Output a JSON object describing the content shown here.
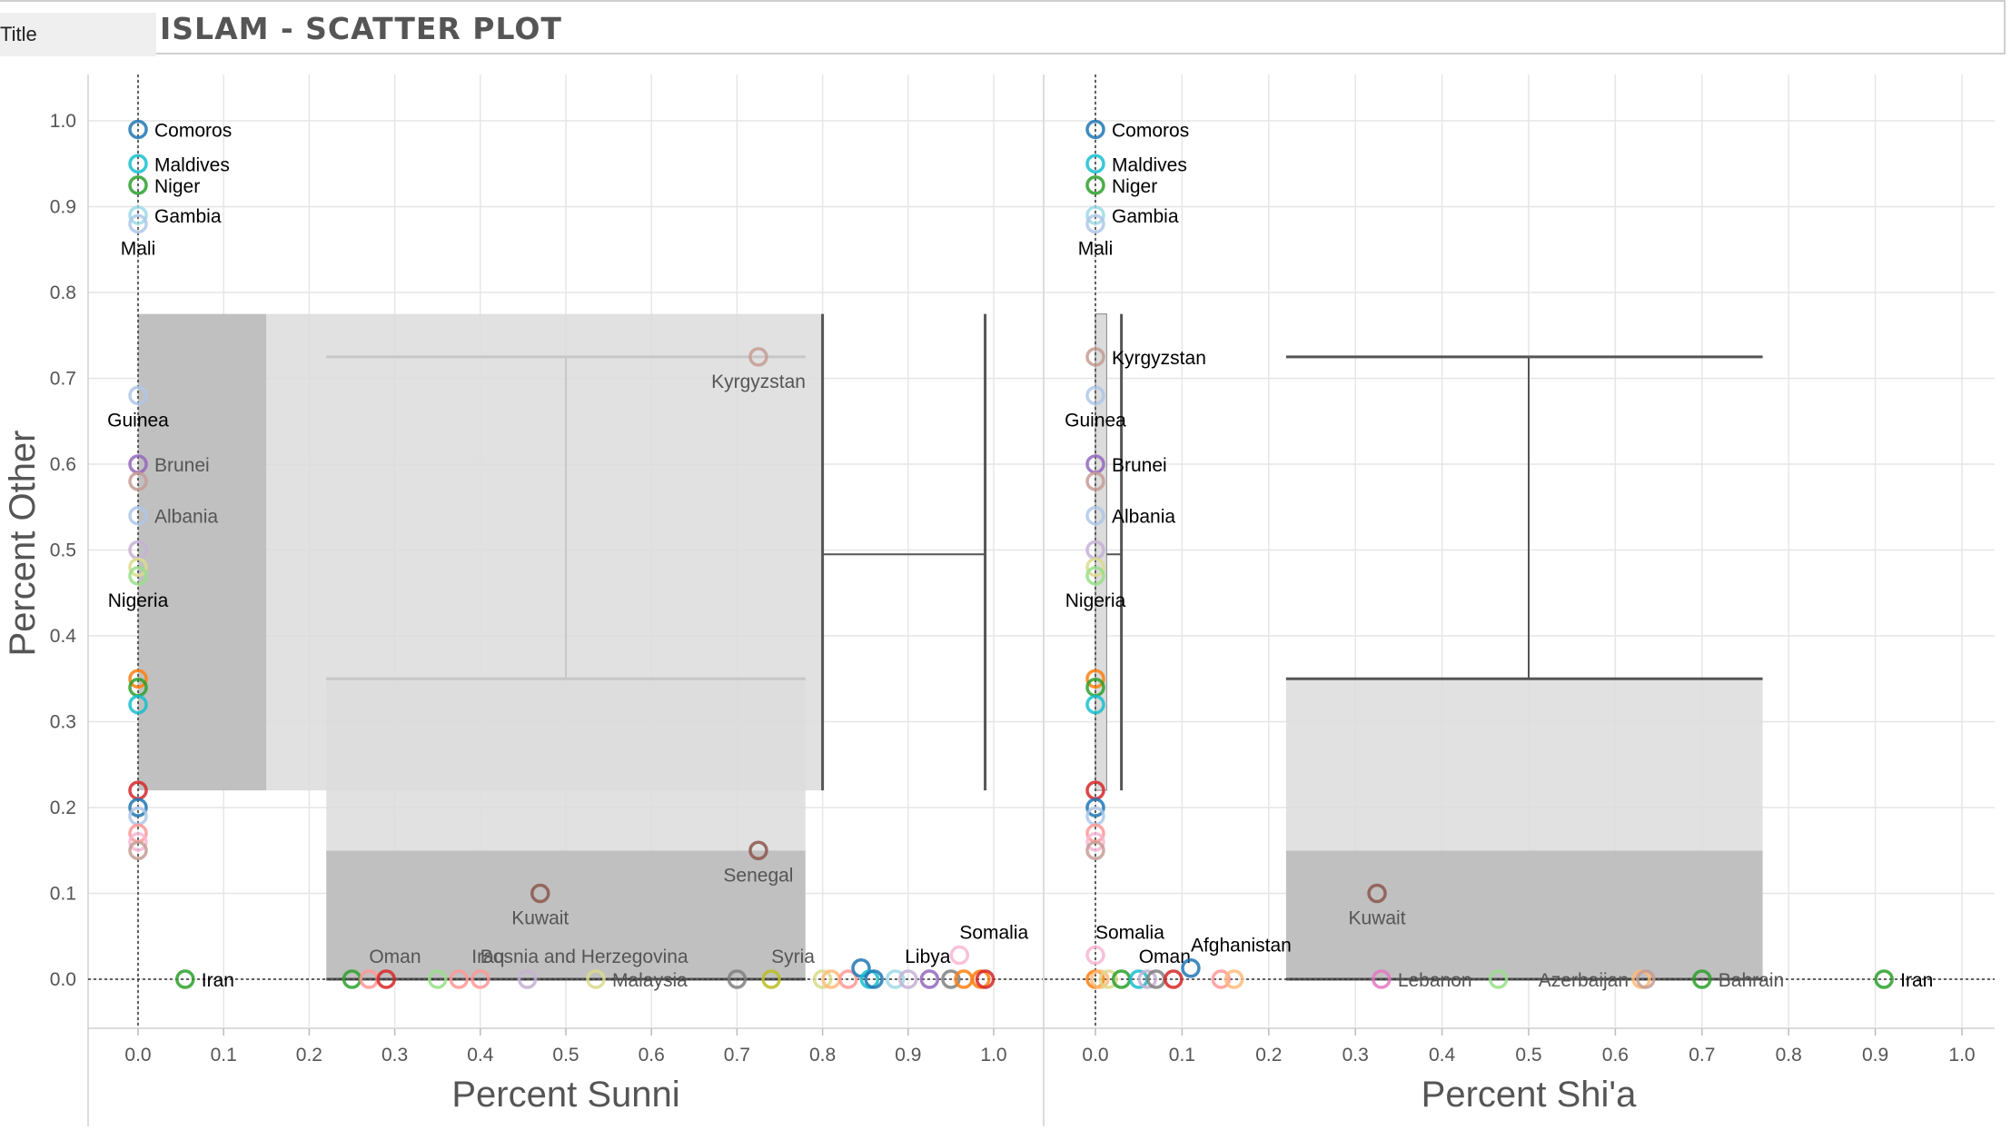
{
  "header": {
    "field_label": "Title",
    "title": "ISLAM - SCATTER PLOT"
  },
  "chart_data": {
    "type": "scatter",
    "ylabel": "Percent Other",
    "ylim": [
      0,
      1.0
    ],
    "yticks": [
      "0.0",
      "0.1",
      "0.2",
      "0.3",
      "0.4",
      "0.5",
      "0.6",
      "0.7",
      "0.8",
      "0.9",
      "1.0"
    ],
    "xticks": [
      "0.0",
      "0.1",
      "0.2",
      "0.3",
      "0.4",
      "0.5",
      "0.6",
      "0.7",
      "0.8",
      "0.9",
      "1.0"
    ],
    "xlim": [
      0,
      1.0
    ],
    "grid": true,
    "panels": [
      {
        "xlabel": "Percent Sunni",
        "boxplots": [
          {
            "orientation": "x",
            "min": 0.22,
            "q1": 0.22,
            "median": 0.5,
            "q3": 0.78,
            "max": 0.78,
            "y_low": 0.0,
            "y_mid": 0.15,
            "y_high": 0.35,
            "whisker_y": 0.725
          },
          {
            "orientation": "y",
            "min": 0.22,
            "q1": 0.22,
            "median": 0.495,
            "q3": 0.775,
            "max": 0.775,
            "x_low": 0.0,
            "x_mid": 0.15,
            "x_high": 0.8,
            "whisker_x": 0.99
          }
        ],
        "points": [
          {
            "x": 0.0,
            "y": 0.99,
            "label": "Comoros",
            "color": "#1f77b4",
            "labelColor": "#000"
          },
          {
            "x": 0.0,
            "y": 0.95,
            "label": "Maldives",
            "color": "#17becf",
            "labelColor": "#000"
          },
          {
            "x": 0.0,
            "y": 0.925,
            "label": "Niger",
            "color": "#2ca02c",
            "labelColor": "#000"
          },
          {
            "x": 0.0,
            "y": 0.89,
            "label": "Gambia",
            "color": "#9edae5",
            "labelColor": "#000"
          },
          {
            "x": 0.0,
            "y": 0.88,
            "label": "Mali",
            "color": "#aec7e8",
            "labelColor": "#000",
            "pos": "below"
          },
          {
            "x": 0.0,
            "y": 0.68,
            "label": "Guinea",
            "color": "#aec7e8",
            "labelColor": "#000",
            "pos": "below"
          },
          {
            "x": 0.0,
            "y": 0.6,
            "label": "Brunei",
            "color": "#9467bd",
            "labelColor": "#555"
          },
          {
            "x": 0.0,
            "y": 0.58,
            "label": "",
            "color": "#c49c94"
          },
          {
            "x": 0.0,
            "y": 0.54,
            "label": "Albania",
            "color": "#aec7e8",
            "labelColor": "#555"
          },
          {
            "x": 0.0,
            "y": 0.5,
            "label": "",
            "color": "#c5b0d5"
          },
          {
            "x": 0.0,
            "y": 0.48,
            "label": "",
            "color": "#dbdb8d"
          },
          {
            "x": 0.0,
            "y": 0.47,
            "label": "Nigeria",
            "color": "#98df8a",
            "labelColor": "#000",
            "pos": "below"
          },
          {
            "x": 0.0,
            "y": 0.35,
            "label": "",
            "color": "#ff7f0e"
          },
          {
            "x": 0.0,
            "y": 0.34,
            "label": "",
            "color": "#2ca02c"
          },
          {
            "x": 0.0,
            "y": 0.32,
            "label": "",
            "color": "#17becf"
          },
          {
            "x": 0.0,
            "y": 0.22,
            "label": "",
            "color": "#d62728"
          },
          {
            "x": 0.0,
            "y": 0.2,
            "label": "",
            "color": "#1f77b4"
          },
          {
            "x": 0.0,
            "y": 0.19,
            "label": "",
            "color": "#aec7e8"
          },
          {
            "x": 0.0,
            "y": 0.17,
            "label": "",
            "color": "#ff9896"
          },
          {
            "x": 0.0,
            "y": 0.16,
            "label": "",
            "color": "#f7b6d2"
          },
          {
            "x": 0.0,
            "y": 0.15,
            "label": "",
            "color": "#c49c94"
          },
          {
            "x": 0.055,
            "y": 0.0,
            "label": "Iran",
            "color": "#2ca02c",
            "labelColor": "#000"
          },
          {
            "x": 0.725,
            "y": 0.725,
            "label": "Kyrgyzstan",
            "color": "#c49c94",
            "labelColor": "#555",
            "pos": "belowleft"
          },
          {
            "x": 0.725,
            "y": 0.15,
            "label": "Senegal",
            "color": "#8c564b",
            "labelColor": "#555",
            "pos": "below"
          },
          {
            "x": 0.47,
            "y": 0.1,
            "label": "Kuwait",
            "color": "#8c564b",
            "labelColor": "#555",
            "pos": "below"
          },
          {
            "x": 0.25,
            "y": 0.0,
            "label": "",
            "color": "#2ca02c"
          },
          {
            "x": 0.27,
            "y": 0.0,
            "label": "Oman",
            "color": "#ff9896",
            "labelColor": "#555",
            "pos": "aboveright"
          },
          {
            "x": 0.29,
            "y": 0.0,
            "label": "",
            "color": "#d62728"
          },
          {
            "x": 0.35,
            "y": 0.0,
            "label": "",
            "color": "#98df8a"
          },
          {
            "x": 0.375,
            "y": 0.0,
            "label": "Iraq",
            "color": "#ff9896",
            "labelColor": "#555",
            "pos": "aboveleft"
          },
          {
            "x": 0.4,
            "y": 0.0,
            "label": "Bosnia and Herzegovina",
            "color": "#ff9896",
            "labelColor": "#555",
            "pos": "aboveright"
          },
          {
            "x": 0.455,
            "y": 0.0,
            "label": "",
            "color": "#c5b0d5"
          },
          {
            "x": 0.535,
            "y": 0.0,
            "label": "Malaysia",
            "color": "#dbdb8d",
            "labelColor": "#555"
          },
          {
            "x": 0.7,
            "y": 0.0,
            "label": "",
            "color": "#7f7f7f"
          },
          {
            "x": 0.74,
            "y": 0.0,
            "label": "Syria",
            "color": "#bcbd22",
            "labelColor": "#555",
            "pos": "aboveright"
          },
          {
            "x": 0.8,
            "y": 0.0,
            "label": "",
            "color": "#dbdb8d"
          },
          {
            "x": 0.81,
            "y": 0.0,
            "label": "",
            "color": "#ffbb78"
          },
          {
            "x": 0.83,
            "y": 0.0,
            "label": "",
            "color": "#ff9896"
          },
          {
            "x": 0.845,
            "y": 0.013,
            "label": "",
            "color": "#1f77b4"
          },
          {
            "x": 0.855,
            "y": 0.0,
            "label": "",
            "color": "#17becf"
          },
          {
            "x": 0.86,
            "y": 0.0,
            "label": "",
            "color": "#1f77b4"
          },
          {
            "x": 0.885,
            "y": 0.0,
            "label": "",
            "color": "#9edae5"
          },
          {
            "x": 0.9,
            "y": 0.0,
            "label": "",
            "color": "#c5b0d5"
          },
          {
            "x": 0.925,
            "y": 0.0,
            "label": "Libya",
            "color": "#9467bd",
            "labelColor": "#000",
            "pos": "above"
          },
          {
            "x": 0.95,
            "y": 0.0,
            "label": "",
            "color": "#7f7f7f"
          },
          {
            "x": 0.965,
            "y": 0.0,
            "label": "",
            "color": "#ff7f0e"
          },
          {
            "x": 0.96,
            "y": 0.028,
            "label": "Somalia",
            "color": "#f7b6d2",
            "labelColor": "#000",
            "pos": "aboveright"
          },
          {
            "x": 0.985,
            "y": 0.0,
            "label": "",
            "color": "#ff7f0e"
          },
          {
            "x": 0.99,
            "y": 0.0,
            "label": "",
            "color": "#d62728"
          }
        ]
      },
      {
        "xlabel": "Percent Shi'a",
        "boxplots": [
          {
            "orientation": "x",
            "min": 0.22,
            "q1": 0.22,
            "median": 0.5,
            "q3": 0.77,
            "max": 0.77,
            "y_low": 0.0,
            "y_mid": 0.15,
            "y_high": 0.35,
            "whisker_y": 0.725
          }
        ],
        "points": [
          {
            "x": 0.0,
            "y": 0.99,
            "label": "Comoros",
            "color": "#1f77b4",
            "labelColor": "#000"
          },
          {
            "x": 0.0,
            "y": 0.95,
            "label": "Maldives",
            "color": "#17becf",
            "labelColor": "#000"
          },
          {
            "x": 0.0,
            "y": 0.925,
            "label": "Niger",
            "color": "#2ca02c",
            "labelColor": "#000"
          },
          {
            "x": 0.0,
            "y": 0.89,
            "label": "Gambia",
            "color": "#9edae5",
            "labelColor": "#000"
          },
          {
            "x": 0.0,
            "y": 0.88,
            "label": "Mali",
            "color": "#aec7e8",
            "labelColor": "#000",
            "pos": "below"
          },
          {
            "x": 0.0,
            "y": 0.725,
            "label": "Kyrgyzstan",
            "color": "#c49c94",
            "labelColor": "#000"
          },
          {
            "x": 0.0,
            "y": 0.68,
            "label": "Guinea",
            "color": "#aec7e8",
            "labelColor": "#000",
            "pos": "below"
          },
          {
            "x": 0.0,
            "y": 0.6,
            "label": "Brunei",
            "color": "#9467bd",
            "labelColor": "#000"
          },
          {
            "x": 0.0,
            "y": 0.58,
            "label": "",
            "color": "#c49c94"
          },
          {
            "x": 0.0,
            "y": 0.54,
            "label": "Albania",
            "color": "#aec7e8",
            "labelColor": "#000"
          },
          {
            "x": 0.0,
            "y": 0.5,
            "label": "",
            "color": "#c5b0d5"
          },
          {
            "x": 0.0,
            "y": 0.48,
            "label": "",
            "color": "#dbdb8d"
          },
          {
            "x": 0.0,
            "y": 0.47,
            "label": "Nigeria",
            "color": "#98df8a",
            "labelColor": "#000",
            "pos": "below"
          },
          {
            "x": 0.0,
            "y": 0.35,
            "label": "",
            "color": "#ff7f0e"
          },
          {
            "x": 0.0,
            "y": 0.34,
            "label": "",
            "color": "#2ca02c"
          },
          {
            "x": 0.0,
            "y": 0.32,
            "label": "",
            "color": "#17becf"
          },
          {
            "x": 0.0,
            "y": 0.22,
            "label": "",
            "color": "#d62728"
          },
          {
            "x": 0.0,
            "y": 0.2,
            "label": "",
            "color": "#1f77b4"
          },
          {
            "x": 0.0,
            "y": 0.19,
            "label": "",
            "color": "#aec7e8"
          },
          {
            "x": 0.0,
            "y": 0.17,
            "label": "",
            "color": "#ff9896"
          },
          {
            "x": 0.0,
            "y": 0.16,
            "label": "",
            "color": "#f7b6d2"
          },
          {
            "x": 0.0,
            "y": 0.15,
            "label": "",
            "color": "#c49c94"
          },
          {
            "x": 0.0,
            "y": 0.028,
            "label": "Somalia",
            "color": "#f7b6d2",
            "labelColor": "#000",
            "pos": "aboveright"
          },
          {
            "x": 0.0,
            "y": 0.0,
            "label": "",
            "color": "#ff7f0e"
          },
          {
            "x": 0.005,
            "y": 0.0,
            "label": "",
            "color": "#ffbb78"
          },
          {
            "x": 0.015,
            "y": 0.0,
            "label": "",
            "color": "#dbdb8d"
          },
          {
            "x": 0.03,
            "y": 0.0,
            "label": "",
            "color": "#2ca02c"
          },
          {
            "x": 0.05,
            "y": 0.0,
            "label": "Oman",
            "color": "#17becf",
            "labelColor": "#000",
            "pos": "aboveright"
          },
          {
            "x": 0.06,
            "y": 0.0,
            "label": "",
            "color": "#c5b0d5"
          },
          {
            "x": 0.07,
            "y": 0.0,
            "label": "",
            "color": "#7f7f7f"
          },
          {
            "x": 0.09,
            "y": 0.0,
            "label": "",
            "color": "#d62728"
          },
          {
            "x": 0.11,
            "y": 0.013,
            "label": "Afghanistan",
            "color": "#1f77b4",
            "labelColor": "#000",
            "pos": "aboveright"
          },
          {
            "x": 0.145,
            "y": 0.0,
            "label": "",
            "color": "#ff9896"
          },
          {
            "x": 0.16,
            "y": 0.0,
            "label": "",
            "color": "#ffbb78"
          },
          {
            "x": 0.325,
            "y": 0.1,
            "label": "Kuwait",
            "color": "#8c564b",
            "labelColor": "#555",
            "pos": "below"
          },
          {
            "x": 0.33,
            "y": 0.0,
            "label": "Lebanon",
            "color": "#e377c2",
            "labelColor": "#555"
          },
          {
            "x": 0.465,
            "y": 0.0,
            "label": "",
            "color": "#98df8a"
          },
          {
            "x": 0.63,
            "y": 0.0,
            "label": "Azerbaijan",
            "color": "#ffbb78",
            "labelColor": "#555",
            "pos": "left"
          },
          {
            "x": 0.635,
            "y": 0.0,
            "label": "",
            "color": "#c49c94"
          },
          {
            "x": 0.7,
            "y": 0.0,
            "label": "Bahrain",
            "color": "#2ca02c",
            "labelColor": "#555"
          },
          {
            "x": 0.91,
            "y": 0.0,
            "label": "Iran",
            "color": "#2ca02c",
            "labelColor": "#000"
          }
        ]
      }
    ]
  }
}
